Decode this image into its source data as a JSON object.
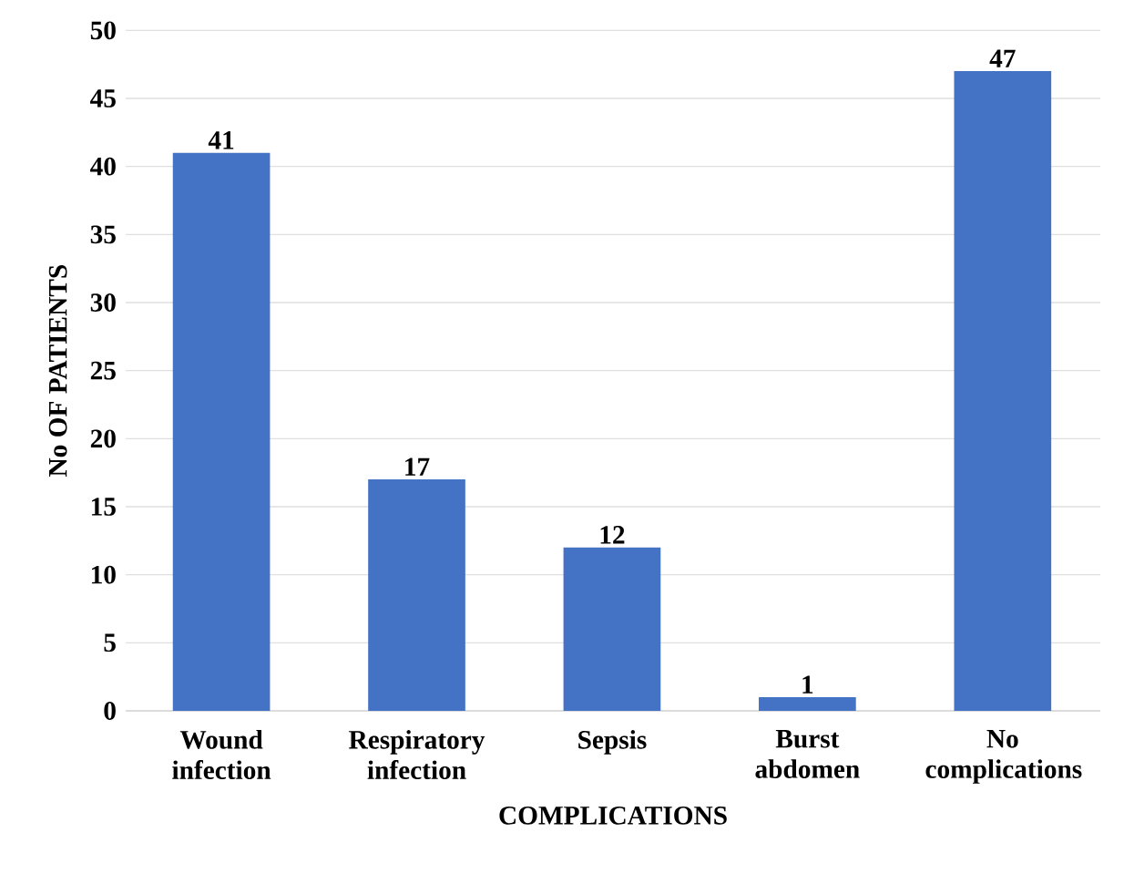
{
  "chart_data": {
    "type": "bar",
    "xlabel": "COMPLICATIONS",
    "ylabel": "No OF PATIENTS",
    "categories": [
      "Wound infection",
      "Respiratory infection",
      "Sepsis",
      "Burst abdomen",
      "No complications"
    ],
    "values": [
      41,
      17,
      12,
      1,
      47
    ],
    "color": "#4472c4",
    "ylim": [
      0,
      50
    ],
    "yticks": [
      0,
      5,
      10,
      15,
      20,
      25,
      30,
      35,
      40,
      45,
      50
    ],
    "grid": "y",
    "data_labels": true
  }
}
